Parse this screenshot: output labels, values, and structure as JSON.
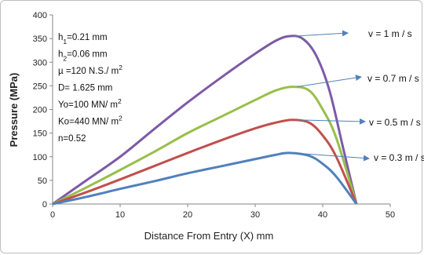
{
  "chart_data": {
    "type": "line",
    "title": "",
    "xlabel": "Distance  From Entry  (X) mm",
    "ylabel": "Pressure (MPa)",
    "xlim": [
      0,
      50
    ],
    "ylim": [
      0,
      400
    ],
    "xticks": [
      "0",
      "10",
      "20",
      "30",
      "40",
      "50"
    ],
    "yticks": [
      "0",
      "50",
      "100",
      "150",
      "200",
      "250",
      "300",
      "350",
      "400"
    ],
    "grid": false,
    "legend": "none",
    "parameters": [
      {
        "symbol": "h",
        "sub": "1",
        "rest": "=0.21 mm",
        "sup": ""
      },
      {
        "symbol": "h",
        "sub": "2",
        "rest": "=0.06 mm",
        "sup": ""
      },
      {
        "symbol": "µ =120 N.S./ m",
        "sub": "",
        "rest": "",
        "sup": "2"
      },
      {
        "symbol": "D= 1.625 mm",
        "sub": "",
        "rest": "",
        "sup": ""
      },
      {
        "symbol": "Yo=100 MN/ m",
        "sub": "",
        "rest": "",
        "sup": "2"
      },
      {
        "symbol": "Ko=440 MN/ m",
        "sub": "",
        "rest": "",
        "sup": "2"
      },
      {
        "symbol": "n=0.52",
        "sub": "",
        "rest": "",
        "sup": ""
      }
    ],
    "series": [
      {
        "name": "v = 1  m / s",
        "color": "#7e5aa6",
        "peak_x": 35,
        "peak_y": 355,
        "end_x": 45,
        "x": [
          0,
          5,
          10,
          15,
          20,
          25,
          30,
          33,
          35,
          37,
          39,
          41,
          43,
          45
        ],
        "y": [
          0,
          50,
          100,
          158,
          215,
          268,
          318,
          345,
          355,
          350,
          315,
          240,
          120,
          0
        ]
      },
      {
        "name": "v = 0.7 m / s",
        "color": "#98bf4a",
        "peak_x": 35.5,
        "peak_y": 248,
        "end_x": 45,
        "x": [
          0,
          5,
          10,
          15,
          20,
          25,
          30,
          33,
          35.5,
          38,
          40,
          42,
          45
        ],
        "y": [
          0,
          35,
          72,
          110,
          150,
          185,
          220,
          240,
          248,
          240,
          200,
          140,
          0
        ]
      },
      {
        "name": "v = 0.5 m / s",
        "color": "#c0504d",
        "peak_x": 35.5,
        "peak_y": 178,
        "end_x": 45,
        "x": [
          0,
          5,
          10,
          15,
          20,
          25,
          30,
          33,
          35.5,
          38,
          40,
          42,
          45
        ],
        "y": [
          0,
          25,
          52,
          80,
          108,
          135,
          160,
          172,
          178,
          172,
          145,
          100,
          0
        ]
      },
      {
        "name": "v = 0.3 m / s",
        "color": "#4f81bd",
        "peak_x": 35,
        "peak_y": 108,
        "end_x": 45,
        "x": [
          0,
          5,
          10,
          15,
          20,
          25,
          30,
          33,
          35,
          38,
          40,
          42,
          45
        ],
        "y": [
          0,
          15,
          32,
          48,
          65,
          80,
          95,
          104,
          108,
          102,
          85,
          58,
          0
        ]
      }
    ]
  }
}
